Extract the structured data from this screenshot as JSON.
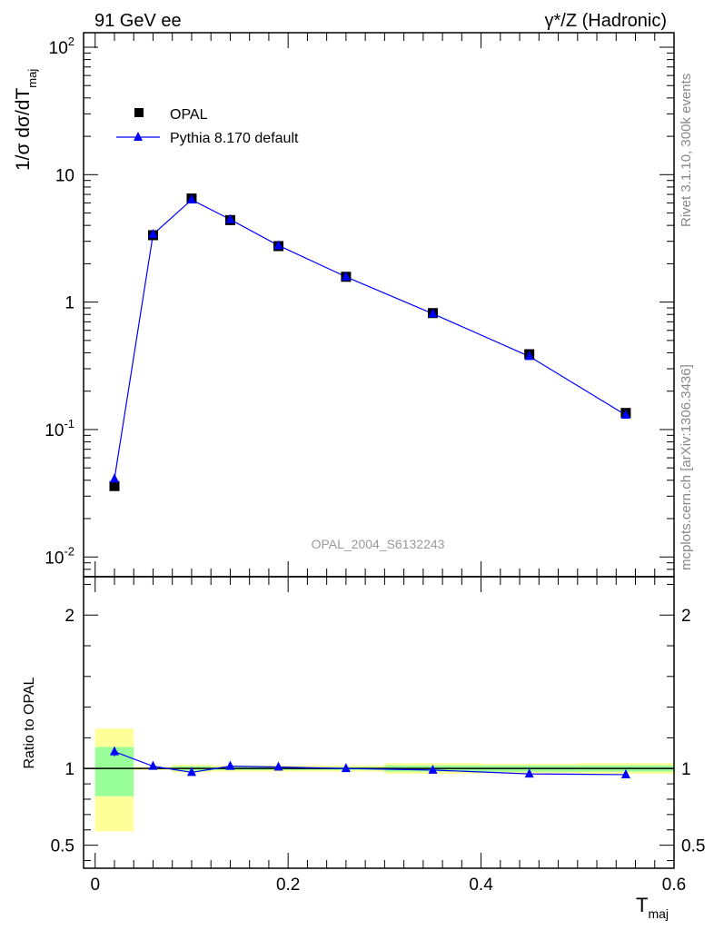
{
  "header": {
    "left": "91 GeV ee",
    "right": "γ*/Z (Hadronic)"
  },
  "side_labels": {
    "rivet": "Rivet 3.1.10,  300k events",
    "mcplots": "mcplots.cern.ch [arXiv:1306.3436]"
  },
  "watermark": "OPAL_2004_S6132243",
  "colors": {
    "data": "#000000",
    "mc": "#0000ff",
    "band_inner": "#99ff99",
    "band_outer": "#ffff99"
  },
  "chart_data": [
    {
      "type": "scatter",
      "title": "",
      "ylabel": "1/σ dσ/dT",
      "ylabel_sub": "maj",
      "yscale": "log",
      "ylim": [
        0.007,
        130
      ],
      "xlim": [
        -0.012,
        0.6
      ],
      "y_ticks": [
        {
          "value": 0.01,
          "label": "10",
          "exp": "-2"
        },
        {
          "value": 0.1,
          "label": "10",
          "exp": "-1"
        },
        {
          "value": 1,
          "label": "1",
          "exp": ""
        },
        {
          "value": 10,
          "label": "10",
          "exp": ""
        },
        {
          "value": 100,
          "label": "10",
          "exp": "2"
        }
      ],
      "legend": {
        "placement": "top-left",
        "entries": [
          "OPAL",
          "Pythia 8.170 default"
        ]
      },
      "series": [
        {
          "name": "OPAL",
          "marker": "square",
          "x": [
            0.02,
            0.06,
            0.1,
            0.14,
            0.19,
            0.26,
            0.35,
            0.45,
            0.55
          ],
          "y": [
            0.036,
            3.35,
            6.5,
            4.4,
            2.75,
            1.58,
            0.82,
            0.39,
            0.135
          ]
        },
        {
          "name": "Pythia 8.170 default",
          "marker": "triangle",
          "x": [
            0.02,
            0.06,
            0.1,
            0.14,
            0.19,
            0.26,
            0.35,
            0.45,
            0.55
          ],
          "y": [
            0.041,
            3.4,
            6.35,
            4.45,
            2.78,
            1.58,
            0.81,
            0.375,
            0.13
          ]
        }
      ]
    },
    {
      "type": "line",
      "title": "",
      "ylabel": "Ratio to OPAL",
      "xlabel": "T",
      "xlabel_sub": "maj",
      "xlim": [
        -0.012,
        0.6
      ],
      "ylim": [
        0.35,
        2.25
      ],
      "x_ticks": [
        {
          "value": 0,
          "label": "0"
        },
        {
          "value": 0.2,
          "label": "0.2"
        },
        {
          "value": 0.4,
          "label": "0.4"
        },
        {
          "value": 0.6,
          "label": "0.6"
        }
      ],
      "y_ticks": [
        {
          "value": 0.5,
          "label": "0.5"
        },
        {
          "value": 1,
          "label": "1"
        },
        {
          "value": 2,
          "label": "2"
        }
      ],
      "bands": [
        {
          "x0": 0.0,
          "x1": 0.04,
          "inner": [
            0.82,
            1.14
          ],
          "outer": [
            0.59,
            1.26
          ]
        },
        {
          "x0": 0.04,
          "x1": 0.08,
          "inner": [
            0.995,
            1.005
          ],
          "outer": [
            0.99,
            1.01
          ]
        },
        {
          "x0": 0.08,
          "x1": 0.12,
          "inner": [
            0.985,
            1.015
          ],
          "outer": [
            0.975,
            1.025
          ]
        },
        {
          "x0": 0.12,
          "x1": 0.16,
          "inner": [
            0.99,
            1.01
          ],
          "outer": [
            0.98,
            1.02
          ]
        },
        {
          "x0": 0.16,
          "x1": 0.22,
          "inner": [
            0.99,
            1.01
          ],
          "outer": [
            0.98,
            1.02
          ]
        },
        {
          "x0": 0.22,
          "x1": 0.3,
          "inner": [
            0.99,
            1.01
          ],
          "outer": [
            0.98,
            1.02
          ]
        },
        {
          "x0": 0.3,
          "x1": 0.4,
          "inner": [
            0.98,
            1.02
          ],
          "outer": [
            0.965,
            1.035
          ]
        },
        {
          "x0": 0.4,
          "x1": 0.5,
          "inner": [
            0.98,
            1.02
          ],
          "outer": [
            0.97,
            1.03
          ]
        },
        {
          "x0": 0.5,
          "x1": 0.6,
          "inner": [
            0.98,
            1.02
          ],
          "outer": [
            0.965,
            1.035
          ]
        }
      ],
      "series": [
        {
          "name": "Pythia 8.170 default / OPAL",
          "marker": "triangle",
          "x": [
            0.02,
            0.06,
            0.1,
            0.14,
            0.19,
            0.26,
            0.35,
            0.45,
            0.55
          ],
          "y": [
            1.11,
            1.015,
            0.975,
            1.015,
            1.01,
            1.0,
            0.99,
            0.965,
            0.96
          ],
          "err": [
            0.03,
            0,
            0,
            0,
            0,
            0,
            0,
            0,
            0
          ]
        }
      ]
    }
  ]
}
